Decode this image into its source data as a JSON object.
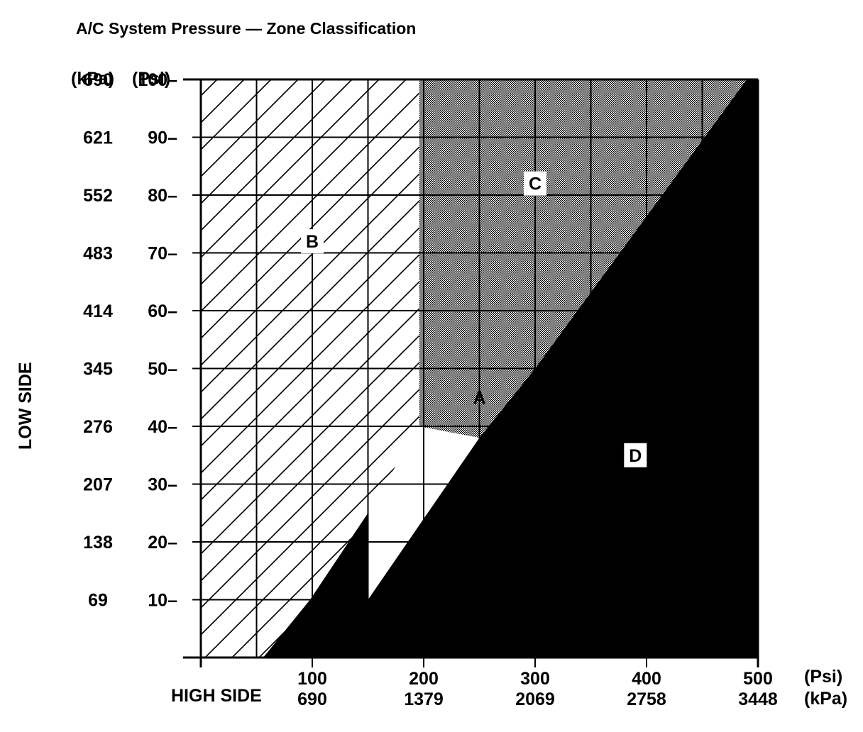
{
  "chart_data": {
    "type": "area",
    "title": "A/C System Pressure — Zone Classification",
    "xlabel": "HIGH SIDE",
    "ylabel": "LOW SIDE",
    "x_unit_labels": [
      "(Psi)",
      "(kPa)"
    ],
    "y_unit_labels": [
      "(kPa)",
      "(Psi)"
    ],
    "xlim": [
      0,
      500
    ],
    "ylim": [
      0,
      100
    ],
    "x_ticks": [
      {
        "psi": 100,
        "label_psi": "100",
        "label_kpa": "690"
      },
      {
        "psi": 200,
        "label_psi": "200",
        "label_kpa": "1379"
      },
      {
        "psi": 300,
        "label_psi": "300",
        "label_kpa": "2069"
      },
      {
        "psi": 400,
        "label_psi": "400",
        "label_kpa": "2758"
      },
      {
        "psi": 500,
        "label_psi": "500",
        "label_kpa": "3448"
      }
    ],
    "y_ticks": [
      {
        "psi": 10,
        "label_psi": "10–",
        "label_kpa": "69"
      },
      {
        "psi": 20,
        "label_psi": "20–",
        "label_kpa": "138"
      },
      {
        "psi": 30,
        "label_psi": "30–",
        "label_kpa": "207"
      },
      {
        "psi": 40,
        "label_psi": "40–",
        "label_kpa": "276"
      },
      {
        "psi": 50,
        "label_psi": "50–",
        "label_kpa": "345"
      },
      {
        "psi": 60,
        "label_psi": "60–",
        "label_kpa": "414"
      },
      {
        "psi": 70,
        "label_psi": "70–",
        "label_kpa": "483"
      },
      {
        "psi": 80,
        "label_psi": "80–",
        "label_kpa": "552"
      },
      {
        "psi": 90,
        "label_psi": "90–",
        "label_kpa": "621"
      },
      {
        "psi": 100,
        "label_psi": "100–",
        "label_kpa": "690"
      }
    ],
    "grid": {
      "x_step": 50,
      "y_step": 10
    },
    "zones": [
      {
        "label": "A",
        "fill": "white",
        "polygon": [
          [
            150,
            15
          ],
          [
            150,
            25
          ],
          [
            196,
            40
          ],
          [
            250,
            50
          ],
          [
            300,
            66
          ],
          [
            314,
            70
          ],
          [
            314,
            54
          ],
          [
            300,
            50
          ],
          [
            250,
            38
          ],
          [
            200,
            24
          ],
          [
            150,
            10
          ]
        ],
        "label_at": [
          250,
          45
        ]
      },
      {
        "label": "B",
        "fill": "hatched",
        "polygon": [
          [
            0,
            0
          ],
          [
            60,
            0
          ],
          [
            98,
            10
          ],
          [
            150,
            25
          ],
          [
            196,
            40
          ],
          [
            196,
            100
          ],
          [
            0,
            100
          ]
        ],
        "label_at": [
          100,
          72
        ]
      },
      {
        "label": "C",
        "fill": "stipple",
        "polygon": [
          [
            196,
            100
          ],
          [
            490,
            100
          ],
          [
            300,
            50
          ],
          [
            250,
            38
          ],
          [
            196,
            40
          ]
        ],
        "label_at": [
          300,
          82
        ]
      },
      {
        "label": "D",
        "fill": "black",
        "polygon": [
          [
            56,
            0
          ],
          [
            500,
            0
          ],
          [
            500,
            100
          ],
          [
            490,
            100
          ],
          [
            300,
            50
          ],
          [
            250,
            38
          ],
          [
            200,
            24
          ],
          [
            150,
            10
          ],
          [
            150,
            25
          ],
          [
            98,
            10
          ]
        ],
        "label_at": [
          390,
          35
        ]
      }
    ],
    "colors": {
      "ink": "#000000",
      "stipple": "#bbbbbb",
      "paper": "#ffffff"
    }
  }
}
